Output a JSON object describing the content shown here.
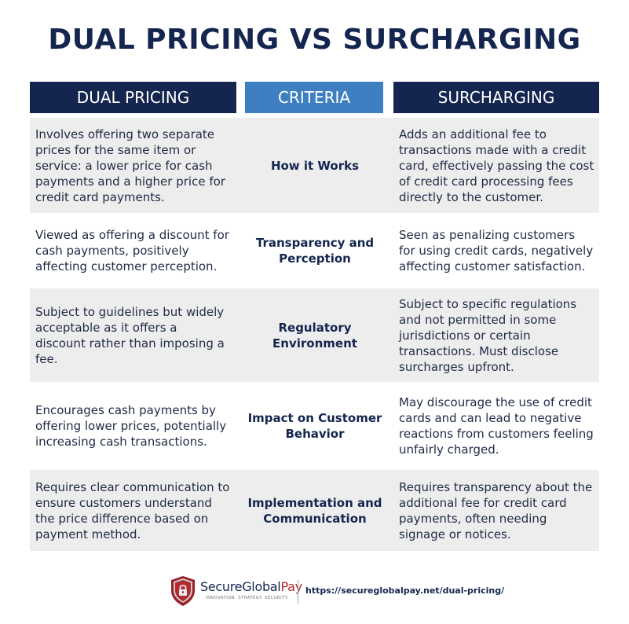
{
  "title": "DUAL PRICING VS SURCHARGING",
  "headers": {
    "left": "DUAL PRICING",
    "middle": "CRITERIA",
    "right": "SURCHARGING"
  },
  "rows": [
    {
      "criteria": "How it Works",
      "dual_pricing": "Involves offering two separate prices for the same item or service: a lower price for cash payments and a higher price for credit card payments.",
      "surcharging": "Adds an additional fee to transactions made with a credit card, effectively passing the cost of credit card processing fees directly to the customer."
    },
    {
      "criteria": "Transparency and Perception",
      "dual_pricing": "Viewed as offering a discount for cash payments, positively affecting customer perception.",
      "surcharging": "Seen as penalizing customers for using credit cards, negatively affecting customer satisfaction."
    },
    {
      "criteria": "Regulatory Environment",
      "dual_pricing": "Subject to guidelines but widely acceptable as it offers a discount rather than imposing a fee.",
      "surcharging": "Subject to specific regulations and not permitted in some jurisdictions or certain transactions. Must disclose surcharges upfront."
    },
    {
      "criteria": "Impact on Customer Behavior",
      "dual_pricing": "Encourages cash payments by offering lower prices, potentially increasing cash transactions.",
      "surcharging": "May discourage the use of credit cards and can lead to negative reactions from customers feeling unfairly charged."
    },
    {
      "criteria": "Implementation and Communication",
      "dual_pricing": "Requires clear communication to ensure customers understand the price difference based on payment method.",
      "surcharging": "Requires transparency about the additional fee for credit card payments, often needing signage or notices."
    }
  ],
  "footer": {
    "brand_main": "SecureGlobal",
    "brand_accent": "Pay",
    "tagline": "INNOVATION. STRATEGY. SECURITY.",
    "url": "https://secureglobalpay.net/dual-pricing/",
    "logo_icon": "shield-lock-icon"
  },
  "colors": {
    "navy": "#14264f",
    "blue": "#3d7fc0",
    "row_shade": "#ededed",
    "accent_red": "#b22a2a"
  }
}
